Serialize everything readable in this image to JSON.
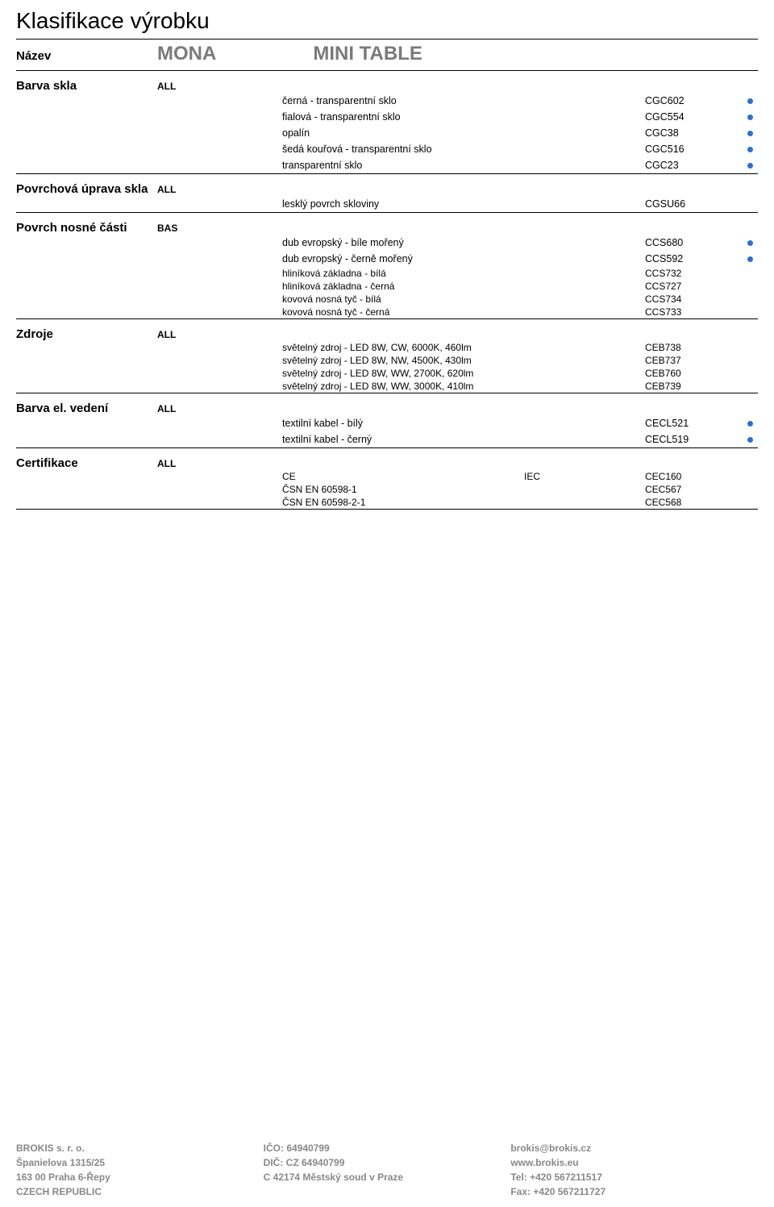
{
  "page_title": "Klasifikace výrobku",
  "name_label": "Název",
  "product_name_1": "MONA",
  "product_name_2": "MINI TABLE",
  "colors": {
    "dot": "#2a6fd6",
    "title_gray": "#7a7a7a",
    "footer_gray": "#888888"
  },
  "sections": {
    "barva_skla": {
      "label": "Barva skla",
      "tag": "ALL",
      "rows": [
        {
          "desc": "černá - transparentní sklo",
          "code": "CGC602",
          "dot": true
        },
        {
          "desc": "fialová - transparentní sklo",
          "code": "CGC554",
          "dot": true
        },
        {
          "desc": "opalín",
          "code": "CGC38",
          "dot": true
        },
        {
          "desc": "šedá kouřová - transparentní sklo",
          "code": "CGC516",
          "dot": true
        },
        {
          "desc": "transparentní sklo",
          "code": "CGC23",
          "dot": true
        }
      ]
    },
    "povrch_uprava": {
      "label": "Povrchová úprava skla",
      "tag": "ALL",
      "rows": [
        {
          "desc": "lesklý povrch skloviny",
          "code": "CGSU66",
          "dot": false
        }
      ]
    },
    "povrch_nosne": {
      "label": "Povrch nosné části",
      "tag": "BAS",
      "rows_spaced": [
        {
          "desc": "dub evropský - bíle mořený",
          "code": "CCS680",
          "dot": true
        },
        {
          "desc": "dub evropský - černě mořený",
          "code": "CCS592",
          "dot": true
        }
      ],
      "rows_compact": [
        {
          "desc": "hliníková základna - bílá",
          "code": "CCS732"
        },
        {
          "desc": "hliníková základna - černá",
          "code": "CCS727"
        },
        {
          "desc": "kovová nosná tyč - bílá",
          "code": "CCS734"
        },
        {
          "desc": "kovová nosná tyč - černá",
          "code": "CCS733"
        }
      ]
    },
    "zdroje": {
      "label": "Zdroje",
      "tag": "ALL",
      "rows_compact": [
        {
          "desc": "světelný zdroj - LED 8W, CW, 6000K, 460lm",
          "code": "CEB738"
        },
        {
          "desc": "světelný zdroj - LED 8W, NW, 4500K, 430lm",
          "code": "CEB737"
        },
        {
          "desc": "světelný zdroj - LED 8W, WW, 2700K, 620lm",
          "code": "CEB760"
        },
        {
          "desc": "světelný zdroj - LED 8W, WW, 3000K, 410lm",
          "code": "CEB739"
        }
      ]
    },
    "barva_el": {
      "label": "Barva el. vedení",
      "tag": "ALL",
      "rows": [
        {
          "desc": "textilní kabel - bílý",
          "code": "CECL521",
          "dot": true
        },
        {
          "desc": "textilní kabel - černý",
          "code": "CECL519",
          "dot": true
        }
      ]
    },
    "certifikace": {
      "label": "Certifikace",
      "tag": "ALL",
      "rows_compact": [
        {
          "desc": "CE",
          "mid": "IEC",
          "code": "CEC160"
        },
        {
          "desc": "ČSN EN 60598-1",
          "mid": "",
          "code": "CEC567"
        },
        {
          "desc": "ČSN EN 60598-2-1",
          "mid": "",
          "code": "CEC568"
        }
      ]
    }
  },
  "footer": {
    "left": [
      "BROKIS s. r. o.",
      "Španielova 1315/25",
      "163 00  Praha 6-Řepy",
      "CZECH REPUBLIC"
    ],
    "mid": [
      "IČO:  64940799",
      "DIČ:  CZ 64940799",
      "C 42174 Městský soud v Praze"
    ],
    "right": [
      "brokis@brokis.cz",
      "www.brokis.eu",
      "Tel: +420 567211517",
      "Fax: +420 567211727"
    ]
  }
}
